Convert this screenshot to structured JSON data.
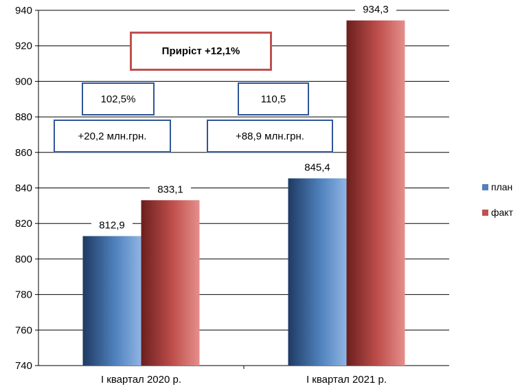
{
  "chart_data": {
    "type": "bar",
    "categories": [
      "І квартал 2020 р.",
      "І квартал 2021 р."
    ],
    "series": [
      {
        "name": "план",
        "values": [
          812.9,
          845.4
        ],
        "labels": [
          "812,9",
          "845,4"
        ],
        "color": "#4f81bd"
      },
      {
        "name": "факт",
        "values": [
          833.1,
          934.3
        ],
        "labels": [
          "833,1",
          "934,3"
        ],
        "color": "#c0504d"
      }
    ],
    "ylim": [
      740,
      940
    ],
    "yticks": [
      740,
      760,
      780,
      800,
      820,
      840,
      860,
      880,
      900,
      920,
      940
    ],
    "grid": true,
    "legend_position": "right"
  },
  "annotations": {
    "growth": "Приріст +12,1%",
    "pct_2020": "102,5%",
    "abs_2020": "+20,2 млн.грн.",
    "pct_2021": "110,5",
    "abs_2021": "+88,9  млн.грн."
  }
}
